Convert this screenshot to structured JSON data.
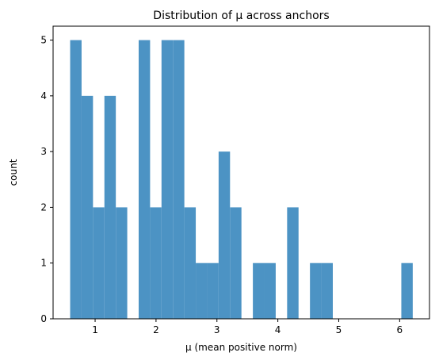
{
  "chart_data": {
    "type": "bar",
    "title": "Distribution of μ across anchors",
    "xlabel": "μ (mean positive norm)",
    "ylabel": "count",
    "bin_edges": [
      0.59,
      0.7775,
      0.965,
      1.1525,
      1.34,
      1.5275,
      1.715,
      1.9025,
      2.09,
      2.2775,
      2.465,
      2.6525,
      2.84,
      3.0275,
      3.215,
      3.4025,
      3.59,
      3.7775,
      3.965,
      4.1525,
      4.34,
      4.5275,
      4.715,
      4.9025,
      5.09,
      5.2775,
      5.465,
      5.6525,
      5.84,
      6.0275,
      6.215
    ],
    "counts": [
      5,
      4,
      2,
      4,
      2,
      0,
      5,
      2,
      5,
      5,
      2,
      1,
      1,
      3,
      2,
      0,
      1,
      1,
      0,
      2,
      0,
      1,
      1,
      0,
      0,
      0,
      0,
      0,
      0,
      1
    ],
    "xlim": [
      0.31,
      6.49
    ],
    "ylim": [
      0,
      5.25
    ],
    "x_ticks": [
      1,
      2,
      3,
      4,
      5,
      6
    ],
    "y_ticks": [
      0,
      1,
      2,
      3,
      4,
      5
    ],
    "bar_color": "#4c93c4",
    "grid": false,
    "legend": "none"
  }
}
